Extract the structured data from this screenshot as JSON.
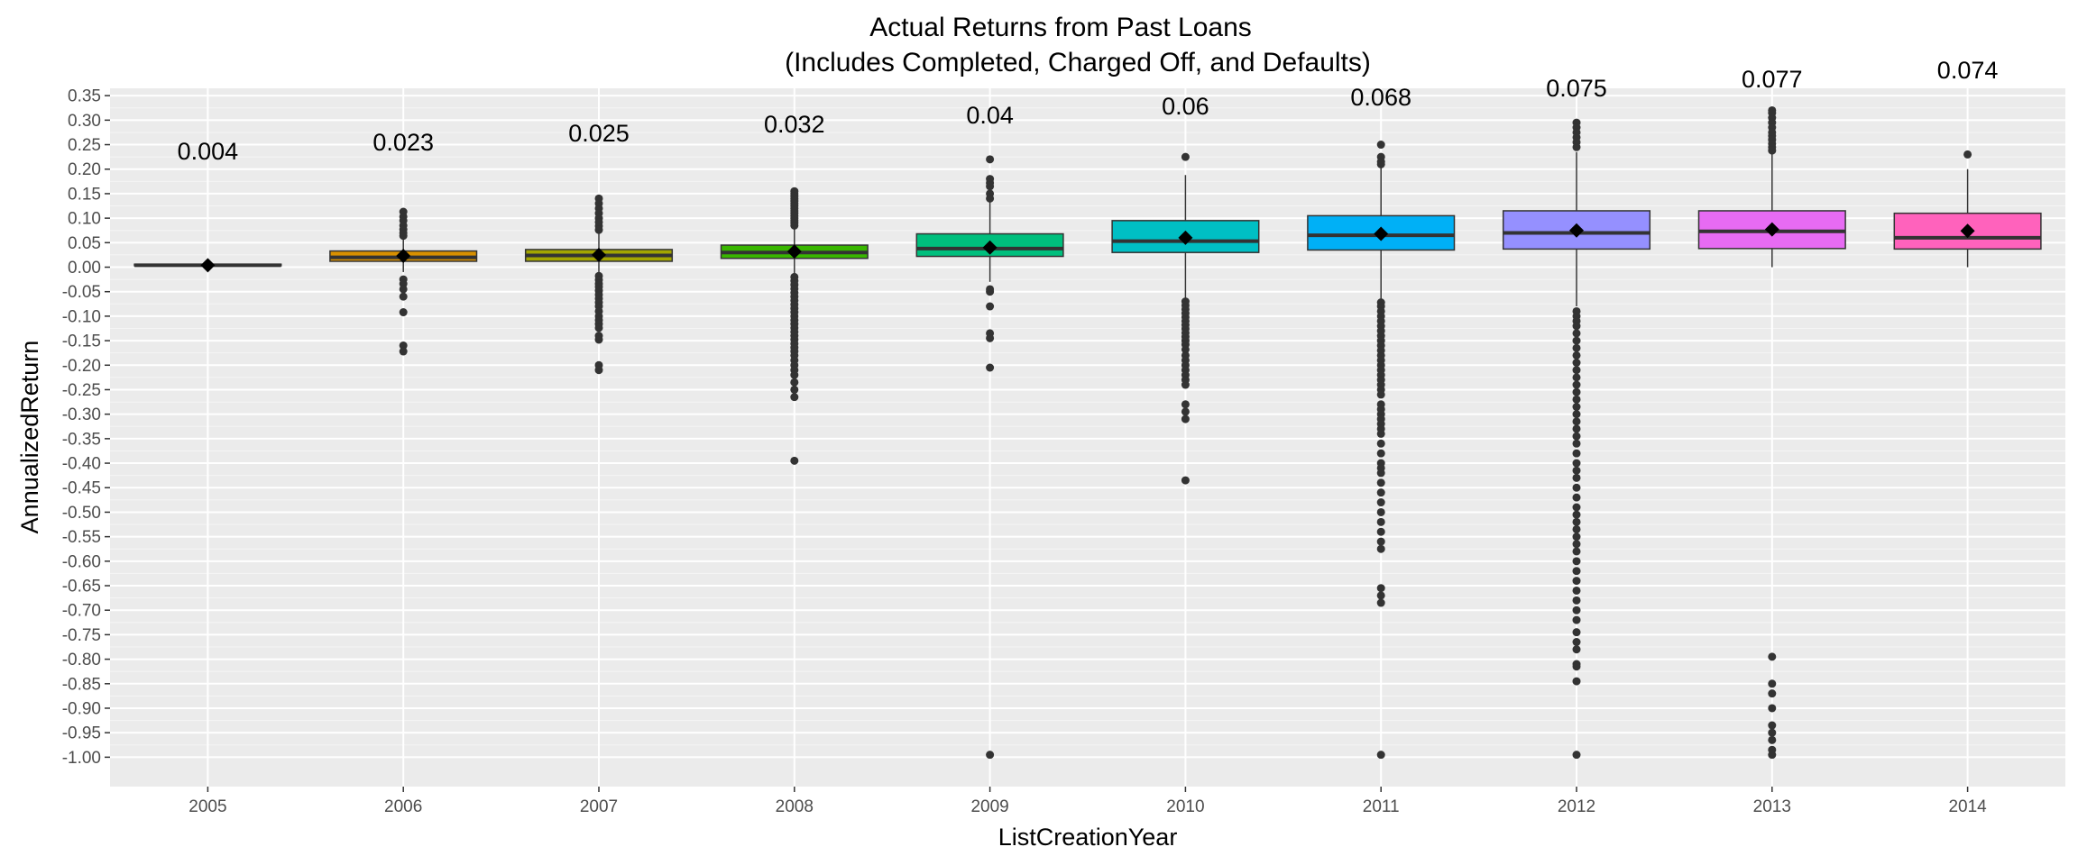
{
  "chart_data": {
    "type": "box",
    "title": "Actual Returns from Past Loans",
    "subtitle": "(Includes Completed, Charged Off, and Defaults)",
    "xlabel": "ListCreationYear",
    "ylabel": "AnnualizedReturn",
    "ylim": [
      -1.06,
      0.365
    ],
    "yticks": [
      0.35,
      0.3,
      0.25,
      0.2,
      0.15,
      0.1,
      0.05,
      0.0,
      -0.05,
      -0.1,
      -0.15,
      -0.2,
      -0.25,
      -0.3,
      -0.35,
      -0.4,
      -0.45,
      -0.5,
      -0.55,
      -0.6,
      -0.65,
      -0.7,
      -0.75,
      -0.8,
      -0.85,
      -0.9,
      -0.95,
      -1.0
    ],
    "ytick_labels": [
      "0.35",
      "0.30",
      "0.25",
      "0.20",
      "0.15",
      "0.10",
      "0.05",
      "0.00",
      "-0.05",
      "-0.10",
      "-0.15",
      "-0.20",
      "-0.25",
      "-0.30",
      "-0.35",
      "-0.40",
      "-0.45",
      "-0.50",
      "-0.55",
      "-0.60",
      "-0.65",
      "-0.70",
      "-0.75",
      "-0.80",
      "-0.85",
      "-0.90",
      "-0.95",
      "-1.00"
    ],
    "grid": true,
    "legend": "none",
    "categories": [
      "2005",
      "2006",
      "2007",
      "2008",
      "2009",
      "2010",
      "2011",
      "2012",
      "2013",
      "2014"
    ],
    "colors": [
      "#F8766D",
      "#D89000",
      "#A3A500",
      "#39B600",
      "#00BF7D",
      "#00BFC4",
      "#00B0F6",
      "#9590FF",
      "#E76BF3",
      "#FF62BC"
    ],
    "mean_label_y": 0.22,
    "boxes": [
      {
        "category": "2005",
        "q1": 0.003,
        "median": 0.004,
        "q3": 0.006,
        "whisker_low": 0.002,
        "whisker_high": 0.007,
        "mean": 0.004,
        "mean_label": "0.004",
        "outliers": []
      },
      {
        "category": "2006",
        "q1": 0.012,
        "median": 0.02,
        "q3": 0.033,
        "whisker_low": -0.01,
        "whisker_high": 0.06,
        "mean": 0.023,
        "mean_label": "0.023",
        "outliers": [
          0.113,
          0.103,
          0.095,
          0.085,
          0.077,
          0.07,
          0.064,
          -0.025,
          -0.034,
          -0.045,
          -0.06,
          -0.092,
          -0.16,
          -0.172
        ]
      },
      {
        "category": "2007",
        "q1": 0.012,
        "median": 0.024,
        "q3": 0.036,
        "whisker_low": -0.01,
        "whisker_high": 0.07,
        "mean": 0.025,
        "mean_label": "0.025",
        "outliers": [
          0.14,
          0.13,
          0.12,
          0.11,
          0.1,
          0.092,
          0.084,
          0.076,
          -0.018,
          -0.026,
          -0.034,
          -0.04,
          -0.048,
          -0.056,
          -0.064,
          -0.072,
          -0.08,
          -0.09,
          -0.1,
          -0.108,
          -0.116,
          -0.124,
          -0.14,
          -0.148,
          -0.2,
          -0.21
        ]
      },
      {
        "category": "2008",
        "q1": 0.018,
        "median": 0.03,
        "q3": 0.045,
        "whisker_low": -0.015,
        "whisker_high": 0.08,
        "mean": 0.032,
        "mean_label": "0.032",
        "outliers": [
          0.155,
          0.15,
          0.145,
          0.14,
          0.135,
          0.13,
          0.125,
          0.12,
          0.115,
          0.11,
          0.105,
          0.1,
          0.095,
          0.09,
          0.085,
          -0.02,
          -0.028,
          -0.036,
          -0.044,
          -0.052,
          -0.06,
          -0.068,
          -0.076,
          -0.084,
          -0.092,
          -0.1,
          -0.108,
          -0.116,
          -0.124,
          -0.132,
          -0.14,
          -0.148,
          -0.156,
          -0.164,
          -0.172,
          -0.18,
          -0.19,
          -0.2,
          -0.21,
          -0.22,
          -0.235,
          -0.25,
          -0.265,
          -0.395
        ]
      },
      {
        "category": "2009",
        "q1": 0.022,
        "median": 0.038,
        "q3": 0.068,
        "whisker_low": -0.03,
        "whisker_high": 0.135,
        "mean": 0.04,
        "mean_label": "0.04",
        "outliers": [
          0.22,
          0.18,
          0.172,
          0.165,
          0.15,
          0.14,
          -0.045,
          -0.05,
          -0.08,
          -0.135,
          -0.145,
          -0.205,
          -0.995
        ]
      },
      {
        "category": "2010",
        "q1": 0.03,
        "median": 0.053,
        "q3": 0.095,
        "whisker_low": -0.065,
        "whisker_high": 0.188,
        "mean": 0.06,
        "mean_label": "0.06",
        "outliers": [
          0.225,
          -0.07,
          -0.078,
          -0.086,
          -0.094,
          -0.102,
          -0.11,
          -0.118,
          -0.126,
          -0.134,
          -0.142,
          -0.15,
          -0.158,
          -0.168,
          -0.18,
          -0.19,
          -0.2,
          -0.21,
          -0.22,
          -0.23,
          -0.24,
          -0.28,
          -0.295,
          -0.31,
          -0.435
        ]
      },
      {
        "category": "2011",
        "q1": 0.035,
        "median": 0.065,
        "q3": 0.105,
        "whisker_low": -0.068,
        "whisker_high": 0.205,
        "mean": 0.068,
        "mean_label": "0.068",
        "outliers": [
          0.25,
          0.225,
          0.215,
          0.21,
          -0.072,
          -0.08,
          -0.09,
          -0.1,
          -0.11,
          -0.12,
          -0.13,
          -0.14,
          -0.15,
          -0.16,
          -0.17,
          -0.18,
          -0.19,
          -0.2,
          -0.21,
          -0.22,
          -0.23,
          -0.24,
          -0.25,
          -0.26,
          -0.28,
          -0.29,
          -0.3,
          -0.31,
          -0.32,
          -0.33,
          -0.34,
          -0.36,
          -0.38,
          -0.4,
          -0.41,
          -0.42,
          -0.44,
          -0.46,
          -0.48,
          -0.5,
          -0.52,
          -0.54,
          -0.56,
          -0.575,
          -0.655,
          -0.67,
          -0.685,
          -0.995
        ]
      },
      {
        "category": "2012",
        "q1": 0.037,
        "median": 0.07,
        "q3": 0.115,
        "whisker_low": -0.08,
        "whisker_high": 0.235,
        "mean": 0.075,
        "mean_label": "0.075",
        "outliers": [
          0.295,
          0.285,
          0.275,
          0.265,
          0.255,
          0.245,
          -0.09,
          -0.1,
          -0.11,
          -0.12,
          -0.135,
          -0.15,
          -0.165,
          -0.18,
          -0.195,
          -0.21,
          -0.225,
          -0.24,
          -0.255,
          -0.27,
          -0.285,
          -0.3,
          -0.315,
          -0.33,
          -0.345,
          -0.36,
          -0.38,
          -0.4,
          -0.415,
          -0.43,
          -0.45,
          -0.47,
          -0.49,
          -0.505,
          -0.52,
          -0.535,
          -0.55,
          -0.565,
          -0.58,
          -0.6,
          -0.62,
          -0.64,
          -0.66,
          -0.68,
          -0.7,
          -0.72,
          -0.745,
          -0.765,
          -0.78,
          -0.81,
          -0.815,
          -0.845,
          -0.995
        ]
      },
      {
        "category": "2013",
        "q1": 0.038,
        "median": 0.073,
        "q3": 0.115,
        "whisker_low": 0.0,
        "whisker_high": 0.23,
        "mean": 0.077,
        "mean_label": "0.077",
        "outliers": [
          0.32,
          0.315,
          0.305,
          0.295,
          0.285,
          0.275,
          0.268,
          0.26,
          0.252,
          0.245,
          0.238,
          -0.795,
          -0.85,
          -0.87,
          -0.9,
          -0.935,
          -0.95,
          -0.965,
          -0.985,
          -0.995
        ]
      },
      {
        "category": "2014",
        "q1": 0.037,
        "median": 0.06,
        "q3": 0.11,
        "whisker_low": 0.0,
        "whisker_high": 0.2,
        "mean": 0.074,
        "mean_label": "0.074",
        "outliers": [
          0.23
        ]
      }
    ]
  }
}
